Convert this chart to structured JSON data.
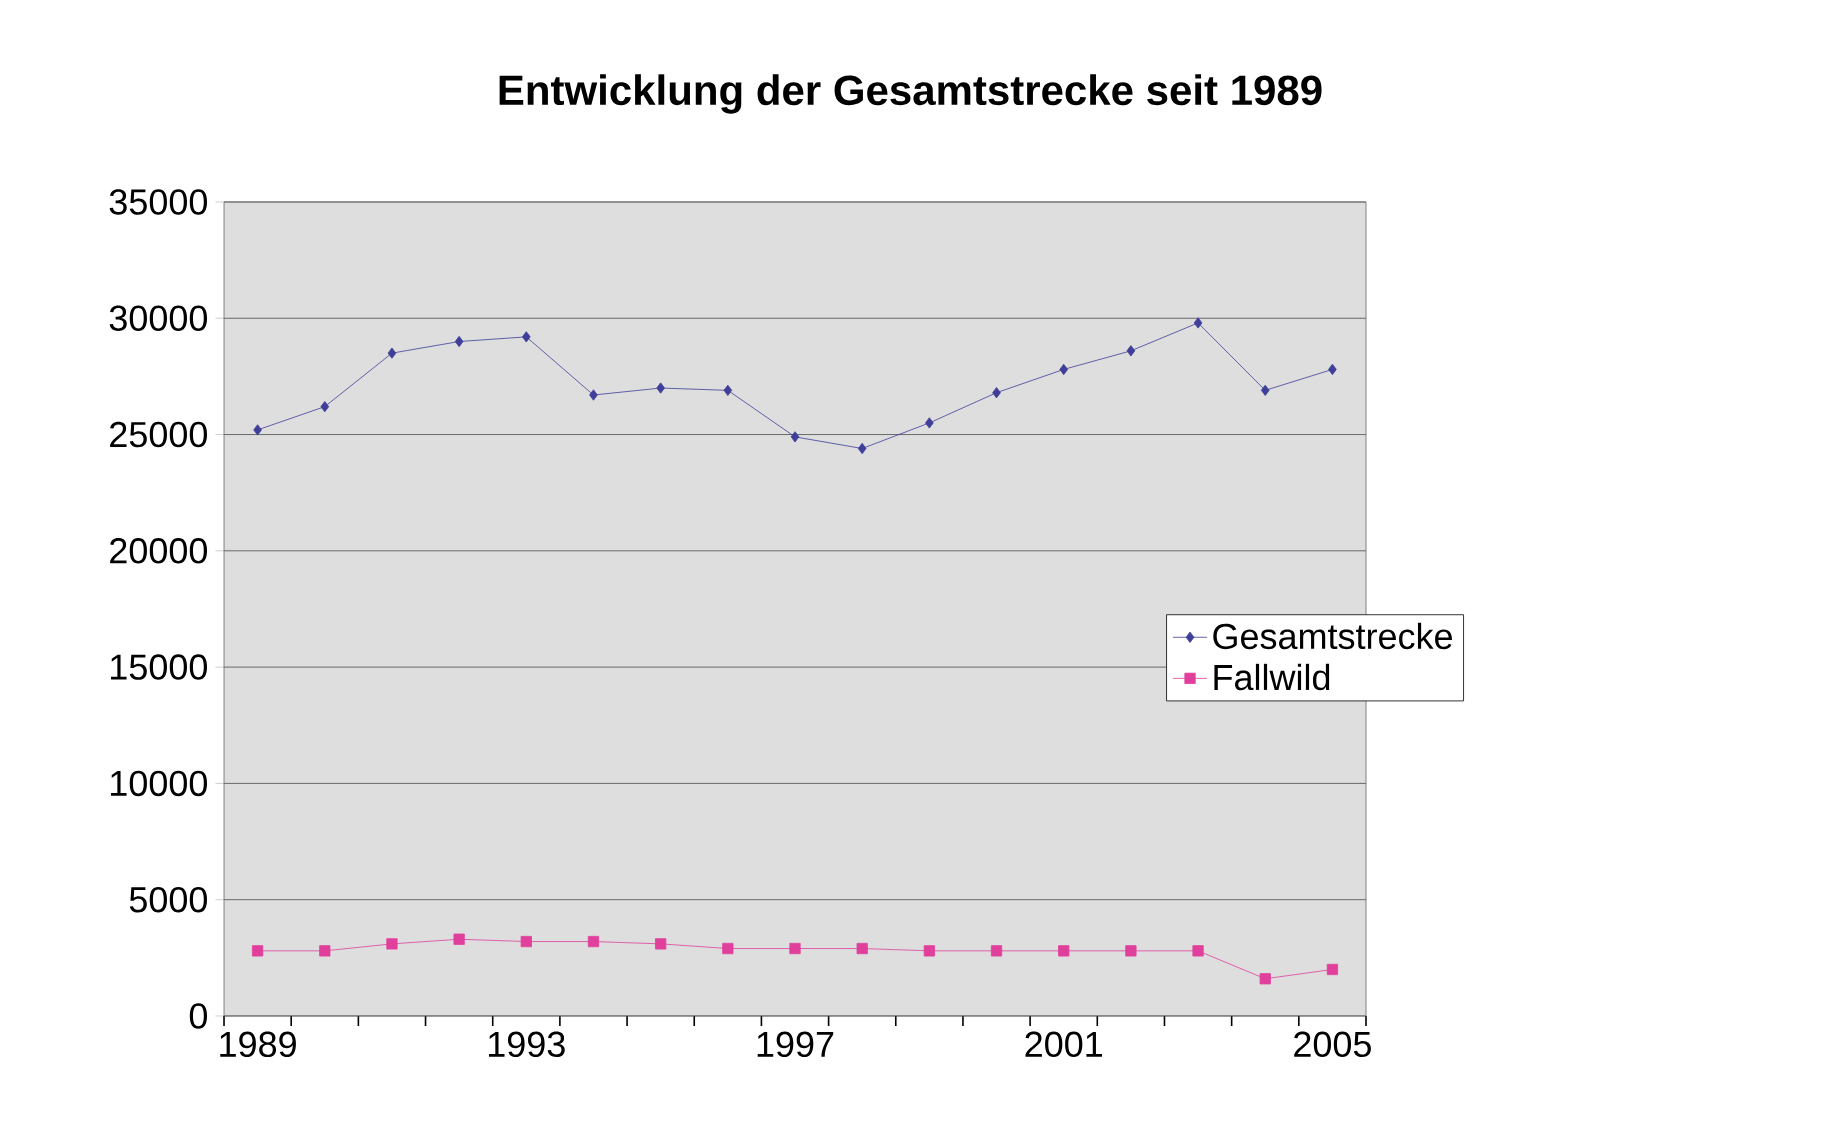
{
  "chart_data": {
    "type": "line",
    "title": "Entwicklung der Gesamtstrecke seit 1989",
    "categories": [
      "1989",
      null,
      null,
      null,
      "1993",
      null,
      null,
      null,
      "1997",
      null,
      null,
      null,
      "2001",
      null,
      null,
      null,
      "2005"
    ],
    "series": [
      {
        "name": "Gesamtstrecke",
        "color": "#3f3f99",
        "marker": "diamond",
        "values": [
          25200,
          26200,
          28500,
          29000,
          29200,
          26700,
          27000,
          26900,
          24900,
          24400,
          25500,
          26800,
          27800,
          28600,
          29800,
          26900,
          27800
        ]
      },
      {
        "name": "Fallwild",
        "color": "#e0409c",
        "marker": "square",
        "values": [
          2800,
          2800,
          3100,
          3300,
          3200,
          3200,
          3100,
          2900,
          2900,
          2900,
          2800,
          2800,
          2800,
          2800,
          2800,
          1600,
          2000
        ]
      }
    ],
    "ylim": [
      0,
      35000
    ],
    "yticks": [
      0,
      5000,
      10000,
      15000,
      20000,
      25000,
      30000,
      35000
    ],
    "grid": "y",
    "legend": "right",
    "line_style": "solid"
  }
}
